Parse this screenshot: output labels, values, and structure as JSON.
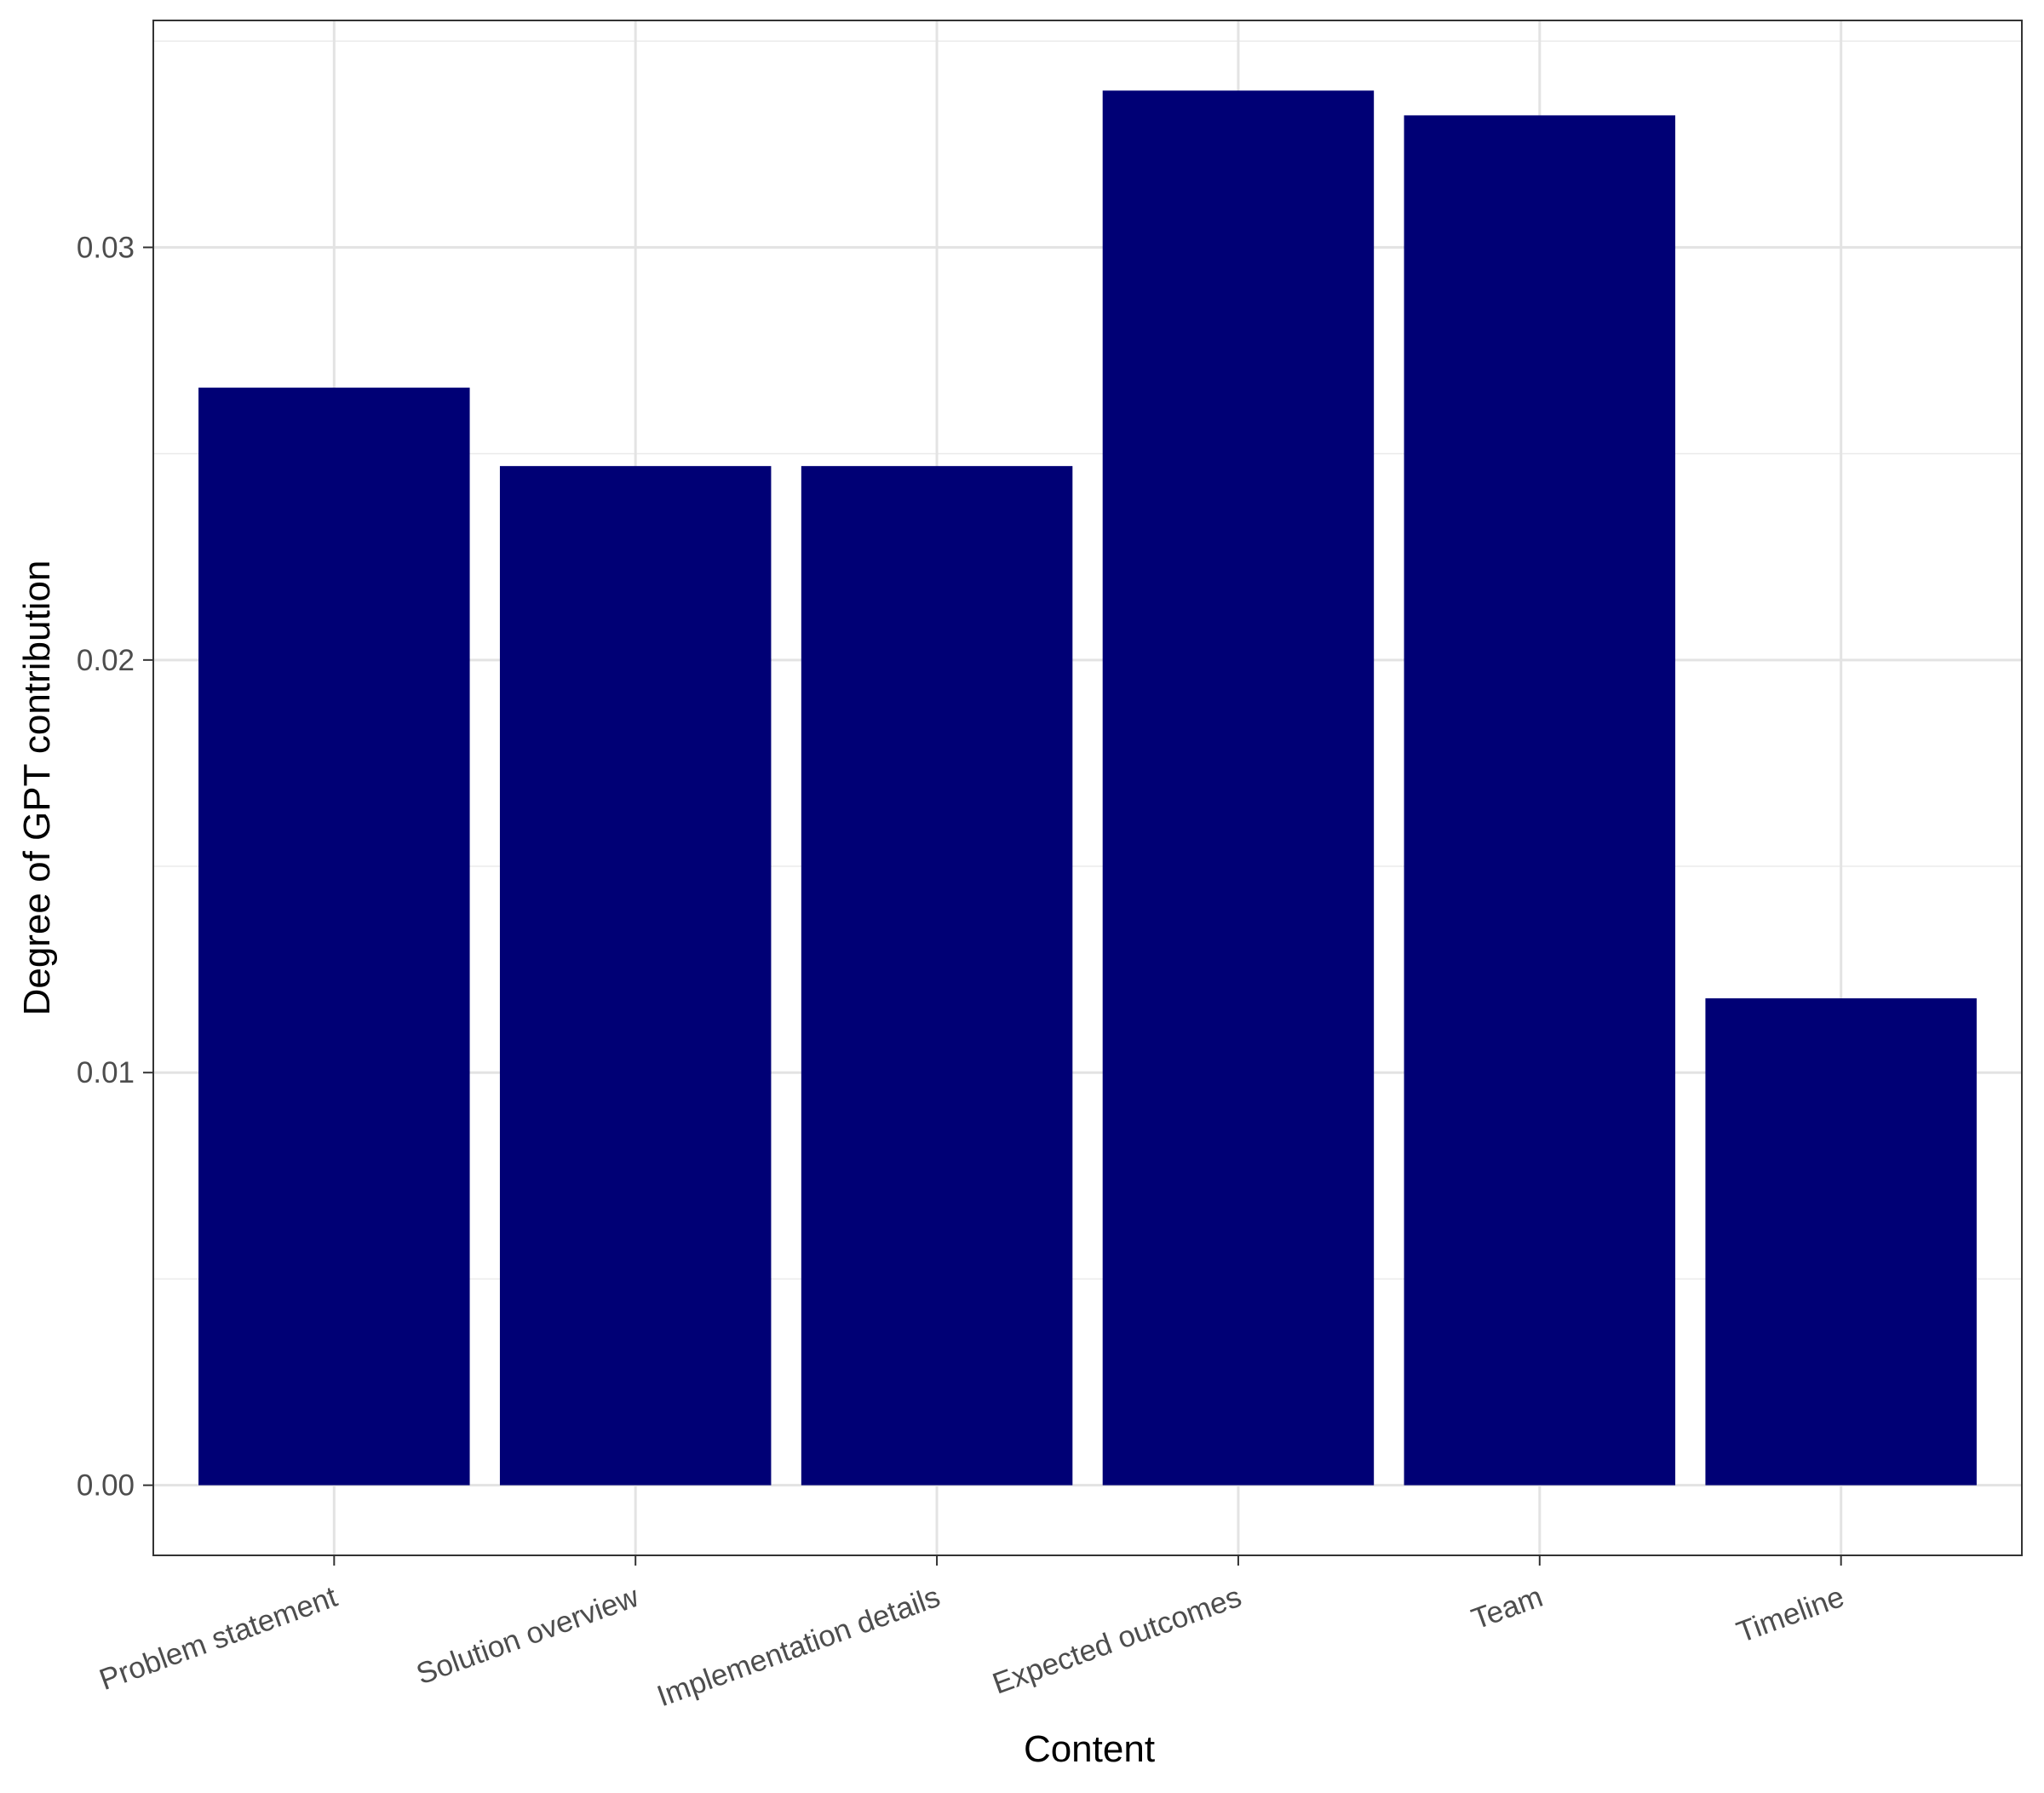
{
  "chart_data": {
    "type": "bar",
    "title": "",
    "xlabel": "Content",
    "ylabel": "Degree of GPT contribution",
    "categories": [
      "Problem statement",
      "Solution overview",
      "Implementation details",
      "Expected outcomes",
      "Team",
      "Timeline"
    ],
    "values": [
      0.0266,
      0.0247,
      0.0247,
      0.0338,
      0.0332,
      0.0118
    ],
    "ylim": [
      -0.0017,
      0.0355
    ],
    "y_ticks": [
      0.0,
      0.01,
      0.02,
      0.03
    ],
    "y_tick_labels": [
      "0.00",
      "0.01",
      "0.02",
      "0.03"
    ],
    "grid": true,
    "legend": "none",
    "bar_color": "#000075"
  }
}
